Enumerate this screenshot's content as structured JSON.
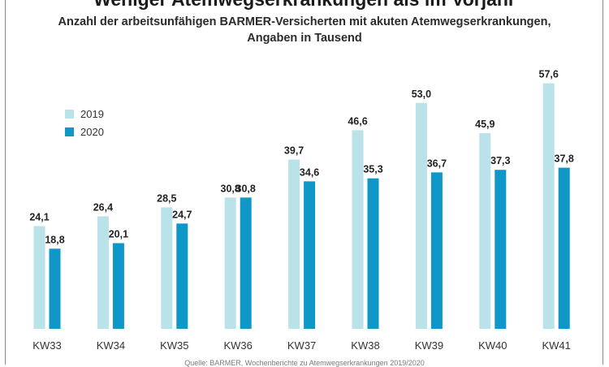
{
  "chart_data": {
    "type": "bar",
    "title": "Weniger Atemwegserkrankungen als im Vorjahr",
    "subtitle_line1": "Anzahl der arbeitsunfähigen BARMER-Versicherten mit akuten Atemwegserkrankungen,",
    "subtitle_line2": "Angaben in Tausend",
    "categories": [
      "KW33",
      "KW34",
      "KW35",
      "KW36",
      "KW37",
      "KW38",
      "KW39",
      "KW40",
      "KW41"
    ],
    "series": [
      {
        "name": "2019",
        "color": "#b9e2e9",
        "values": [
          24.1,
          26.4,
          28.5,
          30.8,
          39.7,
          46.6,
          53.0,
          45.9,
          57.6
        ],
        "labels": [
          "24,1",
          "26,4",
          "28,5",
          "30,8",
          "39,7",
          "46,6",
          "53,0",
          "45,9",
          "57,6"
        ]
      },
      {
        "name": "2020",
        "color": "#0f97c7",
        "values": [
          18.8,
          20.1,
          24.7,
          30.8,
          34.6,
          35.3,
          36.7,
          37.3,
          37.8
        ],
        "labels": [
          "18,8",
          "20,1",
          "24,7",
          "30,8",
          "34,6",
          "35,3",
          "36,7",
          "37,3",
          "37,8"
        ]
      }
    ],
    "ylim": [
      0,
      60
    ],
    "grid": false,
    "legend_position": "top-left",
    "footer": "Quelle: BARMER, Wochenberichte zu Atemwegserkrankungen 2019/2020"
  }
}
